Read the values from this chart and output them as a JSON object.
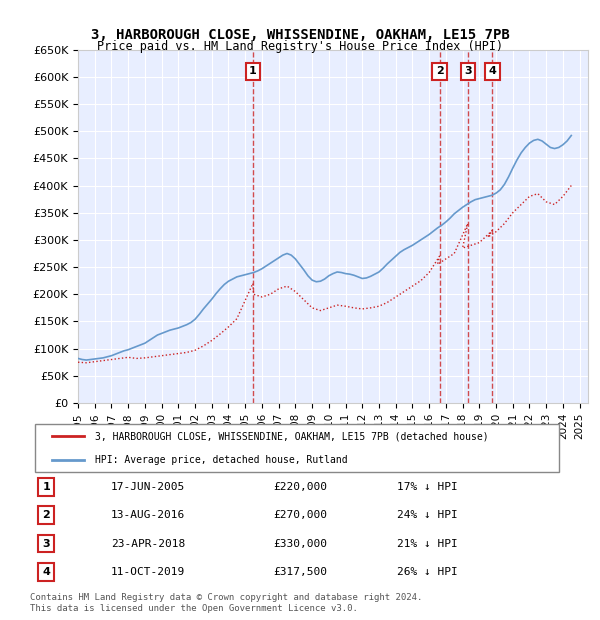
{
  "title": "3, HARBOROUGH CLOSE, WHISSENDINE, OAKHAM, LE15 7PB",
  "subtitle": "Price paid vs. HM Land Registry's House Price Index (HPI)",
  "background_color": "#f0f4ff",
  "plot_bg_color": "#e8eeff",
  "ylim": [
    0,
    650000
  ],
  "yticks": [
    0,
    50000,
    100000,
    150000,
    200000,
    250000,
    300000,
    350000,
    400000,
    450000,
    500000,
    550000,
    600000,
    650000
  ],
  "ytick_labels": [
    "£0",
    "£50K",
    "£100K",
    "£150K",
    "£200K",
    "£250K",
    "£300K",
    "£350K",
    "£400K",
    "£450K",
    "£500K",
    "£550K",
    "£600K",
    "£650K"
  ],
  "xlim_start": 1995.0,
  "xlim_end": 2025.5,
  "xtick_years": [
    1995,
    1996,
    1997,
    1998,
    1999,
    2000,
    2001,
    2002,
    2003,
    2004,
    2005,
    2006,
    2007,
    2008,
    2009,
    2010,
    2011,
    2012,
    2013,
    2014,
    2015,
    2016,
    2017,
    2018,
    2019,
    2020,
    2021,
    2022,
    2023,
    2024,
    2025
  ],
  "hpi_color": "#6699cc",
  "price_color": "#cc2222",
  "vline_color": "#cc2222",
  "transactions": [
    {
      "num": 1,
      "date": "17-JUN-2005",
      "price": 220000,
      "hpi_pct": 17,
      "year": 2005.46
    },
    {
      "num": 2,
      "date": "13-AUG-2016",
      "price": 270000,
      "hpi_pct": 24,
      "year": 2016.62
    },
    {
      "num": 3,
      "date": "23-APR-2018",
      "price": 330000,
      "hpi_pct": 21,
      "year": 2018.31
    },
    {
      "num": 4,
      "date": "11-OCT-2019",
      "price": 317500,
      "hpi_pct": 26,
      "year": 2019.78
    }
  ],
  "legend_label_red": "3, HARBOROUGH CLOSE, WHISSENDINE, OAKHAM, LE15 7PB (detached house)",
  "legend_label_blue": "HPI: Average price, detached house, Rutland",
  "footer": "Contains HM Land Registry data © Crown copyright and database right 2024.\nThis data is licensed under the Open Government Licence v3.0.",
  "hpi_data_x": [
    1995.0,
    1995.25,
    1995.5,
    1995.75,
    1996.0,
    1996.25,
    1996.5,
    1996.75,
    1997.0,
    1997.25,
    1997.5,
    1997.75,
    1998.0,
    1998.25,
    1998.5,
    1998.75,
    1999.0,
    1999.25,
    1999.5,
    1999.75,
    2000.0,
    2000.25,
    2000.5,
    2000.75,
    2001.0,
    2001.25,
    2001.5,
    2001.75,
    2002.0,
    2002.25,
    2002.5,
    2002.75,
    2003.0,
    2003.25,
    2003.5,
    2003.75,
    2004.0,
    2004.25,
    2004.5,
    2004.75,
    2005.0,
    2005.25,
    2005.5,
    2005.75,
    2006.0,
    2006.25,
    2006.5,
    2006.75,
    2007.0,
    2007.25,
    2007.5,
    2007.75,
    2008.0,
    2008.25,
    2008.5,
    2008.75,
    2009.0,
    2009.25,
    2009.5,
    2009.75,
    2010.0,
    2010.25,
    2010.5,
    2010.75,
    2011.0,
    2011.25,
    2011.5,
    2011.75,
    2012.0,
    2012.25,
    2012.5,
    2012.75,
    2013.0,
    2013.25,
    2013.5,
    2013.75,
    2014.0,
    2014.25,
    2014.5,
    2014.75,
    2015.0,
    2015.25,
    2015.5,
    2015.75,
    2016.0,
    2016.25,
    2016.5,
    2016.75,
    2017.0,
    2017.25,
    2017.5,
    2017.75,
    2018.0,
    2018.25,
    2018.5,
    2018.75,
    2019.0,
    2019.25,
    2019.5,
    2019.75,
    2020.0,
    2020.25,
    2020.5,
    2020.75,
    2021.0,
    2021.25,
    2021.5,
    2021.75,
    2022.0,
    2022.25,
    2022.5,
    2022.75,
    2023.0,
    2023.25,
    2023.5,
    2023.75,
    2024.0,
    2024.25,
    2024.5
  ],
  "hpi_data_y": [
    82000,
    80000,
    79000,
    80000,
    81000,
    82000,
    83000,
    85000,
    87000,
    90000,
    93000,
    96000,
    98000,
    101000,
    104000,
    107000,
    110000,
    115000,
    120000,
    125000,
    128000,
    131000,
    134000,
    136000,
    138000,
    141000,
    144000,
    148000,
    154000,
    163000,
    173000,
    182000,
    191000,
    201000,
    210000,
    218000,
    224000,
    228000,
    232000,
    234000,
    236000,
    238000,
    240000,
    243000,
    247000,
    252000,
    257000,
    262000,
    267000,
    272000,
    275000,
    272000,
    265000,
    255000,
    245000,
    234000,
    226000,
    223000,
    224000,
    228000,
    234000,
    238000,
    241000,
    240000,
    238000,
    237000,
    235000,
    232000,
    229000,
    230000,
    233000,
    237000,
    241000,
    248000,
    256000,
    263000,
    270000,
    277000,
    282000,
    286000,
    290000,
    295000,
    300000,
    305000,
    310000,
    316000,
    322000,
    327000,
    333000,
    340000,
    348000,
    354000,
    360000,
    365000,
    370000,
    374000,
    376000,
    378000,
    380000,
    382000,
    386000,
    392000,
    402000,
    416000,
    432000,
    447000,
    460000,
    470000,
    478000,
    483000,
    485000,
    482000,
    476000,
    470000,
    468000,
    470000,
    475000,
    482000,
    492000
  ],
  "price_data_x": [
    1995.0,
    1995.5,
    1996.0,
    1996.5,
    1997.0,
    1997.5,
    1998.0,
    1998.5,
    1999.0,
    1999.5,
    2000.0,
    2000.5,
    2001.0,
    2001.5,
    2002.0,
    2002.5,
    2003.0,
    2003.5,
    2004.0,
    2004.5,
    2005.46,
    2005.5,
    2006.0,
    2006.5,
    2007.0,
    2007.5,
    2008.0,
    2008.5,
    2009.0,
    2009.5,
    2010.0,
    2010.5,
    2011.0,
    2011.5,
    2012.0,
    2012.5,
    2013.0,
    2013.5,
    2014.0,
    2014.5,
    2015.0,
    2015.5,
    2016.0,
    2016.62,
    2016.5,
    2017.0,
    2017.5,
    2018.31,
    2018.0,
    2018.5,
    2019.0,
    2019.78,
    2019.5,
    2020.0,
    2020.5,
    2021.0,
    2021.5,
    2022.0,
    2022.5,
    2023.0,
    2023.5,
    2024.0,
    2024.5
  ],
  "price_data_y": [
    75000,
    74000,
    76000,
    78000,
    80000,
    82000,
    84000,
    82000,
    83000,
    85000,
    87000,
    89000,
    91000,
    93000,
    97000,
    105000,
    115000,
    127000,
    140000,
    155000,
    220000,
    200000,
    195000,
    200000,
    210000,
    215000,
    205000,
    190000,
    175000,
    170000,
    175000,
    180000,
    178000,
    175000,
    173000,
    175000,
    178000,
    185000,
    195000,
    205000,
    215000,
    225000,
    240000,
    270000,
    255000,
    265000,
    275000,
    330000,
    285000,
    290000,
    295000,
    317500,
    305000,
    315000,
    330000,
    350000,
    365000,
    380000,
    385000,
    370000,
    365000,
    380000,
    400000
  ]
}
